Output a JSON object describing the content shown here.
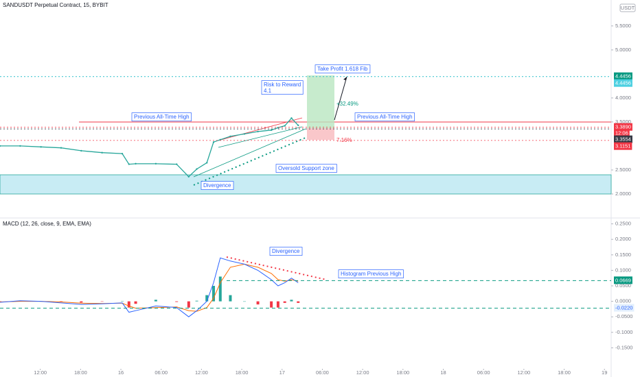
{
  "chart_data": [
    {
      "type": "line",
      "title": "SANDUSDT Perpetual Contract, 15, BYBIT",
      "currency": "USDT",
      "color": "#26a69a",
      "x": [
        6,
        9,
        12.1,
        15.1,
        18.1,
        21.2,
        24.2,
        25.2,
        26.2,
        29.2,
        32.3,
        34.1,
        35.3,
        36.8,
        37.8,
        38.8,
        40.3,
        42.4,
        44.4,
        46.4,
        47.4,
        48.4,
        49.4,
        50.4
      ],
      "values": [
        3.0,
        3.0,
        2.98,
        2.96,
        2.9,
        2.86,
        2.84,
        2.62,
        2.63,
        2.63,
        2.62,
        2.36,
        2.52,
        2.65,
        3.08,
        3.13,
        3.2,
        3.25,
        3.3,
        3.33,
        3.38,
        3.42,
        3.58,
        3.43
      ],
      "xlim": [
        6,
        97
      ],
      "ylim": [
        1.5,
        6.04
      ],
      "yticks": [
        {
          "value": 5.5,
          "label": "5.5000"
        },
        {
          "value": 5,
          "label": "5.0000"
        },
        {
          "value": 4,
          "label": "4.0000"
        },
        {
          "value": 3.5,
          "label": "3.5000"
        },
        {
          "value": 2.5,
          "label": "2.5000"
        },
        {
          "value": 2,
          "label": "2.0000"
        }
      ],
      "price_labels": [
        {
          "value": 4.4456,
          "color": "#089981"
        },
        {
          "value": 4.4456,
          "color": "#4dd0e1"
        },
        {
          "value": {
            "value": 3.389,
            "label": "3.3890"
          },
          "color": "#f23645"
        },
        {
          "value": 3.3554,
          "color": "#363a45"
        },
        {
          "value": 3.1151,
          "color": "#f23645"
        }
      ],
      "countdown": "12:06",
      "annotations": [
        "Previous All-Time High",
        "Previous All-Time High",
        "Take Profit 1.618 Fib",
        "Risk to Reward",
        "4.1",
        "+32.49%",
        "7.16%",
        "Oversold Support zone",
        "Divergence"
      ]
    },
    {
      "type": "macd",
      "title": "MACD (12, 26, close, 9, EMA, EMA)",
      "x": [
        6,
        9,
        12.1,
        15.1,
        18.1,
        21.2,
        24.2,
        25.2,
        26.2,
        29.2,
        32.3,
        34.1,
        35.3,
        36.8,
        37.8,
        38.8,
        40.3,
        42.4,
        44.4,
        46.4,
        47.4,
        48.4,
        49.4,
        50.4
      ],
      "macd": [
        -0.003,
        0.002,
        0,
        -0.005,
        -0.01,
        -0.008,
        -0.005,
        -0.035,
        -0.03,
        -0.015,
        -0.02,
        -0.05,
        -0.03,
        0,
        0.06,
        0.14,
        0.13,
        0.12,
        0.1,
        0.07,
        0.05,
        0.06,
        0.075,
        0.06
      ],
      "signal": [
        -0.002,
        0,
        0,
        -0.002,
        -0.006,
        -0.007,
        -0.006,
        -0.015,
        -0.022,
        -0.02,
        -0.018,
        -0.03,
        -0.032,
        -0.02,
        0.01,
        0.06,
        0.11,
        0.12,
        0.11,
        0.09,
        0.07,
        0.065,
        0.07,
        0.065
      ],
      "histogram": [
        -0.001,
        0.002,
        0,
        -0.003,
        -0.004,
        -0.001,
        0.001,
        -0.02,
        -0.008,
        0.005,
        -0.002,
        -0.02,
        0.002,
        0.02,
        0.05,
        0.08,
        0.02,
        0,
        -0.01,
        -0.02,
        -0.02,
        -0.005,
        0.005,
        -0.005
      ],
      "macd_color": "#2962ff",
      "signal_color": "#ff6d00",
      "xlim": [
        6,
        97
      ],
      "ylim": [
        -0.222,
        0.269
      ],
      "yticks": [
        {
          "value": 0.25,
          "label": "0.2500"
        },
        {
          "value": 0.2,
          "label": "0.2000"
        },
        {
          "value": 0.15,
          "label": "0.1500"
        },
        {
          "value": 0.1,
          "label": "0.1000"
        },
        {
          "value": 0.05,
          "label": "0.0500"
        },
        {
          "value": 0,
          "label": "0.0000"
        },
        {
          "value": -0.05,
          "label": "-0.0500"
        },
        {
          "value": -0.1,
          "label": "-0.1000"
        },
        {
          "value": -0.15,
          "label": "-0.1500"
        }
      ],
      "xticks": [
        {
          "value": 12,
          "label": "12:00"
        },
        {
          "value": 18,
          "label": "18:00"
        },
        {
          "value": 24,
          "label": "16"
        },
        {
          "value": 30,
          "label": "06:00"
        },
        {
          "value": 36,
          "label": "12:00"
        },
        {
          "value": 42,
          "label": "18:00"
        },
        {
          "value": 48,
          "label": "17"
        },
        {
          "value": 54,
          "label": "06:00"
        },
        {
          "value": 60,
          "label": "12:00"
        },
        {
          "value": 66,
          "label": "18:00"
        },
        {
          "value": 72,
          "label": "18"
        },
        {
          "value": 78,
          "label": "06:00"
        },
        {
          "value": 84,
          "label": "12:00"
        },
        {
          "value": 90,
          "label": "18:00"
        },
        {
          "value": 96,
          "label": "19"
        }
      ],
      "levels": [
        0.0669,
        {
          "value": -0.022,
          "label": "-0.0220"
        }
      ],
      "annotations": [
        "Divergence",
        "Histogram Previous High"
      ]
    }
  ]
}
